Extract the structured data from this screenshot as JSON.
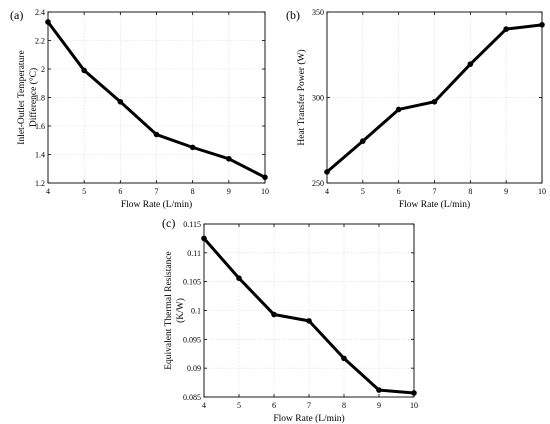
{
  "chart_data": [
    {
      "type": "line",
      "panel_label": "(a)",
      "x": [
        4,
        5,
        6,
        7,
        8,
        9,
        10
      ],
      "series": [
        {
          "values": [
            2.33,
            1.99,
            1.77,
            1.54,
            1.45,
            1.37,
            1.24
          ]
        }
      ],
      "xlabel": "Flow Rate (L/min)",
      "ylabel_lines": [
        "Inlet-Outlet Temperature",
        "Difference (°C)"
      ],
      "xlim": [
        4,
        10
      ],
      "ylim": [
        1.2,
        2.4
      ],
      "xticks": [
        "4",
        "5",
        "6",
        "7",
        "8",
        "9",
        "10"
      ],
      "yticks": [
        "1.2",
        "1.4",
        "1.6",
        "1.8",
        "2",
        "2.2",
        "2.4"
      ],
      "grid": true
    },
    {
      "type": "line",
      "panel_label": "(b)",
      "x": [
        4,
        5,
        6,
        7,
        8,
        9,
        10
      ],
      "series": [
        {
          "values": [
            256.5,
            274.5,
            293,
            297.5,
            319.5,
            340,
            342.5
          ]
        }
      ],
      "xlabel": "Flow Rate (L/min)",
      "ylabel_lines": [
        "Heat Transfer Power (W)"
      ],
      "xlim": [
        4,
        10
      ],
      "ylim": [
        250,
        350
      ],
      "xticks": [
        "4",
        "5",
        "6",
        "7",
        "8",
        "9",
        "10"
      ],
      "yticks": [
        "250",
        "300",
        "350"
      ],
      "grid": true
    },
    {
      "type": "line",
      "panel_label": "(c)",
      "x": [
        4,
        5,
        6,
        7,
        8,
        9,
        10
      ],
      "series": [
        {
          "values": [
            0.1125,
            0.1056,
            0.0993,
            0.0982,
            0.0917,
            0.0862,
            0.0857
          ]
        }
      ],
      "xlabel": "Flow Rate (L/min)",
      "ylabel_lines": [
        "Equivalent Thermal Resistance",
        "(K/W)"
      ],
      "xlim": [
        4,
        10
      ],
      "ylim": [
        0.085,
        0.115
      ],
      "xticks": [
        "4",
        "5",
        "6",
        "7",
        "8",
        "9",
        "10"
      ],
      "yticks": [
        "0.085",
        "0.09",
        "0.095",
        "0.1",
        "0.105",
        "0.11",
        "0.115"
      ],
      "grid": true
    }
  ]
}
